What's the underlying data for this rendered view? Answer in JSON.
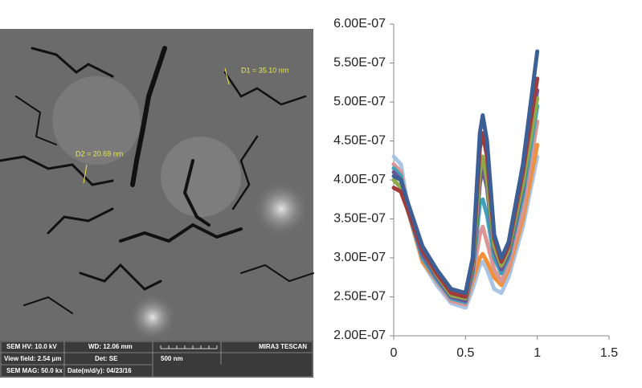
{
  "image": {
    "annotations": [
      "D1 = 35.10 nm",
      "D2 = 20.69 nm"
    ],
    "info_bar": [
      "SEM HV: 10.0 kV",
      "WD: 12.06 mm",
      "MIRA3 TESCAN",
      "View field: 2.54 μm",
      "Det: SE",
      "500 nm",
      "SEM MAG: 50.0 kx",
      "Date(m/d/y): 04/23/16"
    ]
  },
  "chart_data": {
    "type": "line",
    "x": [
      0,
      0.05,
      0.1,
      0.2,
      0.3,
      0.4,
      0.5,
      0.55,
      0.6,
      0.62,
      0.65,
      0.7,
      0.75,
      0.8,
      0.9,
      1.0
    ],
    "series": [
      {
        "color": "#a9c4e4",
        "values": [
          4.3e-07,
          4.2e-07,
          3.65e-07,
          2.95e-07,
          2.65e-07,
          2.42e-07,
          2.36e-07,
          2.6e-07,
          2.9e-07,
          2.95e-07,
          2.85e-07,
          2.6e-07,
          2.55e-07,
          2.75e-07,
          3.4e-07,
          4.3e-07
        ]
      },
      {
        "color": "#f0913a",
        "values": [
          4.2e-07,
          4.1e-07,
          3.6e-07,
          2.95e-07,
          2.7e-07,
          2.45e-07,
          2.4e-07,
          2.7e-07,
          3e-07,
          3.05e-07,
          2.95e-07,
          2.75e-07,
          2.65e-07,
          2.85e-07,
          3.5e-07,
          4.45e-07
        ]
      },
      {
        "color": "#d99694",
        "values": [
          4.2e-07,
          4.1e-07,
          3.6e-07,
          3e-07,
          2.7e-07,
          2.45e-07,
          2.4e-07,
          2.75e-07,
          3.3e-07,
          3.4e-07,
          3.2e-07,
          2.85e-07,
          2.7e-07,
          2.9e-07,
          3.6e-07,
          4.75e-07
        ]
      },
      {
        "color": "#3ea0bb",
        "values": [
          4.15e-07,
          4.05e-07,
          3.6e-07,
          3e-07,
          2.72e-07,
          2.48e-07,
          2.43e-07,
          2.8e-07,
          3.7e-07,
          3.75e-07,
          3.55e-07,
          3e-07,
          2.8e-07,
          3e-07,
          3.8e-07,
          4.95e-07
        ]
      },
      {
        "color": "#6e5596",
        "values": [
          4.1e-07,
          4e-07,
          3.6e-07,
          3.05e-07,
          2.75e-07,
          2.5e-07,
          2.45e-07,
          2.85e-07,
          3.95e-07,
          4.15e-07,
          3.9e-07,
          3.1e-07,
          2.85e-07,
          3.05e-07,
          3.9e-07,
          5.15e-07
        ]
      },
      {
        "color": "#8eaa4a",
        "values": [
          4e-07,
          3.9e-07,
          3.6e-07,
          3.1e-07,
          2.78e-07,
          2.52e-07,
          2.48e-07,
          2.9e-07,
          4.1e-07,
          4.3e-07,
          4e-07,
          3.15e-07,
          2.9e-07,
          3.1e-07,
          3.95e-07,
          5.05e-07
        ]
      },
      {
        "color": "#a33a3a",
        "values": [
          3.9e-07,
          3.85e-07,
          3.6e-07,
          3.1e-07,
          2.8e-07,
          2.55e-07,
          2.5e-07,
          2.95e-07,
          4.4e-07,
          4.6e-07,
          4.3e-07,
          3.25e-07,
          2.95e-07,
          3.15e-07,
          4.1e-07,
          5.3e-07
        ]
      },
      {
        "color": "#3c5f95",
        "values": [
          4.05e-07,
          4e-07,
          3.7e-07,
          3.15e-07,
          2.85e-07,
          2.6e-07,
          2.55e-07,
          3e-07,
          4.6e-07,
          4.83e-07,
          4.5e-07,
          3.3e-07,
          3e-07,
          3.2e-07,
          4.2e-07,
          5.65e-07
        ]
      }
    ],
    "xlim": [
      0,
      1.5
    ],
    "xticks": [
      0,
      0.5,
      1,
      1.5
    ],
    "ylim": [
      2e-07,
      6e-07
    ],
    "yticks": [
      {
        "value": 2e-07,
        "label": "2.00E-07"
      },
      {
        "value": 2.5e-07,
        "label": "2.50E-07"
      },
      {
        "value": 3e-07,
        "label": "3.00E-07"
      },
      {
        "value": 3.5e-07,
        "label": "3.50E-07"
      },
      {
        "value": 4e-07,
        "label": "4.00E-07"
      },
      {
        "value": 4.5e-07,
        "label": "4.50E-07"
      },
      {
        "value": 5e-07,
        "label": "5.00E-07"
      },
      {
        "value": 5.5e-07,
        "label": "5.50E-07"
      },
      {
        "value": 6e-07,
        "label": "6.00E-07"
      }
    ]
  }
}
